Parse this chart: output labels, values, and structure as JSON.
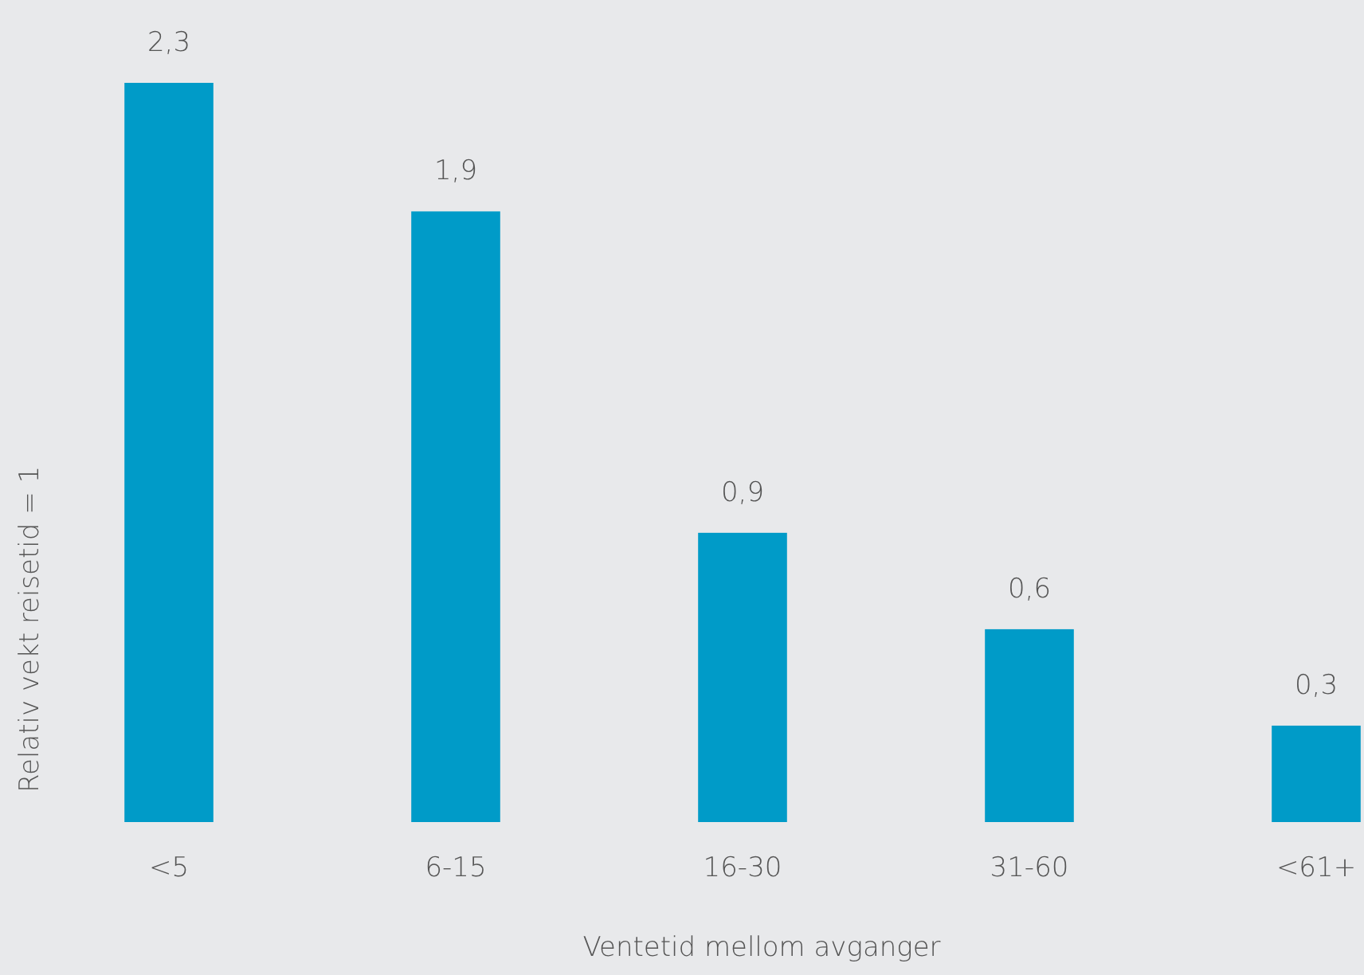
{
  "chart_data": {
    "type": "bar",
    "xlabel": "Ventetid mellom avganger",
    "ylabel": "Relativ vekt reisetid = 1",
    "categories": [
      "<5",
      "6-15",
      "16-30",
      "31-60",
      "<61+"
    ],
    "values": [
      2.3,
      1.9,
      0.9,
      0.6,
      0.3
    ],
    "value_labels": [
      "2,3",
      "1,9",
      "0,9",
      "0,6",
      "0,3"
    ],
    "color": "#009bc8"
  }
}
